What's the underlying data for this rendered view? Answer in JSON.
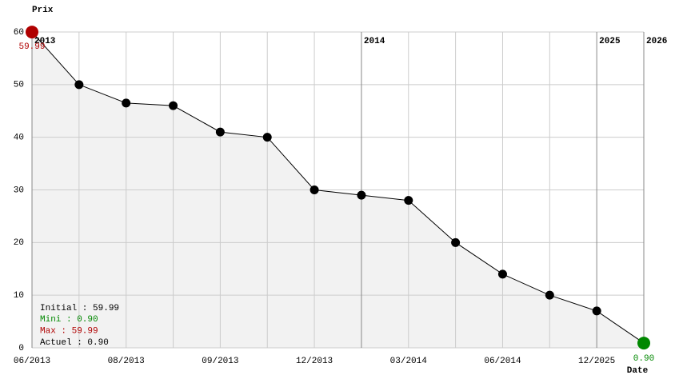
{
  "chart_data": {
    "type": "line",
    "y_label": "Prix",
    "x_label": "Date",
    "categories": [
      "06/2013",
      null,
      "08/2013",
      null,
      "09/2013",
      null,
      "12/2013",
      null,
      "03/2014",
      null,
      "06/2014",
      null,
      "12/2025",
      null
    ],
    "year_labels": [
      "2013",
      null,
      null,
      null,
      null,
      null,
      null,
      "2014",
      null,
      null,
      null,
      null,
      "2025",
      "2026"
    ],
    "series": [
      {
        "color": "#000000",
        "fill": "#f2f2f2",
        "values": [
          59.99,
          50,
          46.5,
          46,
          41,
          40,
          30,
          29,
          28,
          20,
          14,
          10,
          7,
          0.9
        ],
        "value_labels": [
          "59.99",
          null,
          null,
          null,
          null,
          null,
          null,
          null,
          null,
          null,
          null,
          null,
          null,
          "0.90"
        ],
        "marker_colors": [
          "#b00000",
          "#000000",
          "#000000",
          "#000000",
          "#000000",
          "#000000",
          "#000000",
          "#000000",
          "#000000",
          "#000000",
          "#000000",
          "#000000",
          "#000000",
          "#008800"
        ]
      }
    ],
    "ylim": [
      0,
      60
    ],
    "yticks": [
      0,
      10,
      20,
      30,
      40,
      50,
      60
    ],
    "grid": true,
    "stats": [
      {
        "text": "Initial : 59.99",
        "color": "#000000"
      },
      {
        "text": "Mini : 0.90",
        "color": "#008800"
      },
      {
        "text": "Max : 59.99",
        "color": "#b00000"
      },
      {
        "text": "Actuel : 0.90",
        "color": "#000000"
      }
    ]
  }
}
